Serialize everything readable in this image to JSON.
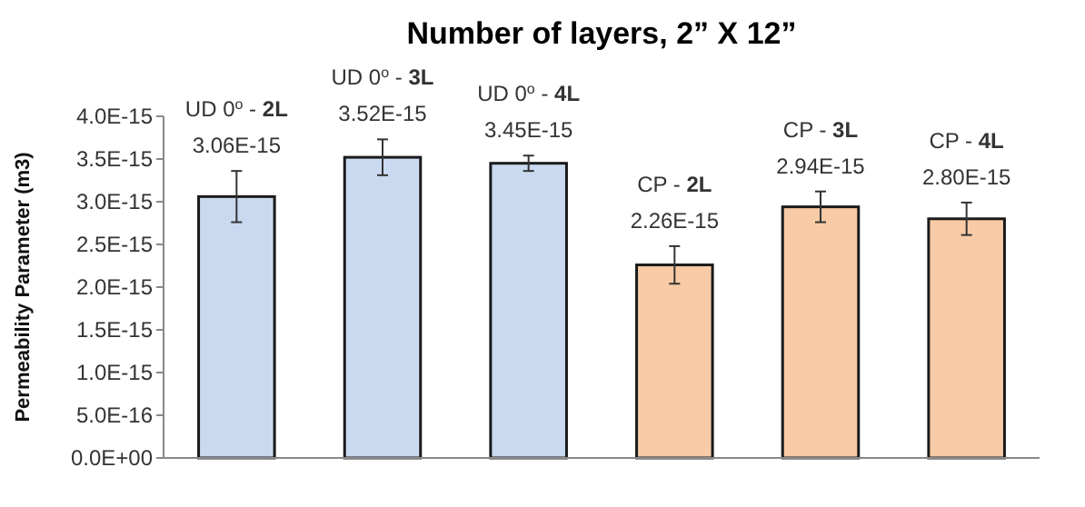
{
  "chart_data": {
    "type": "bar",
    "title": "Number of layers, 2” X 12”",
    "ylabel": "Permeability Parameter (m3)",
    "categories": [
      "UD 0$^{o}$ - 2L",
      "UD 0$^{o}$ - 3L",
      "UD 0$^{o}$ - 4L",
      "CP - 2L",
      "CP - 3L",
      "CP - 4L"
    ],
    "values": [
      3.06e-15,
      3.52e-15,
      3.45e-15,
      2.26e-15,
      2.94e-15,
      2.8e-15
    ],
    "value_labels": [
      "3.06E-15",
      "3.52E-15",
      "3.45E-15",
      "2.26E-15",
      "2.94E-15",
      "2.80E-15"
    ],
    "errors": [
      3e-16,
      2.1e-16,
      9e-17,
      2.2e-16,
      1.8e-16,
      1.9e-16
    ],
    "colors": [
      "#c9daf0",
      "#c9daf0",
      "#c9daf0",
      "#f8cba6",
      "#f8cba6",
      "#f8cba6"
    ],
    "ylim": [
      0,
      4e-15
    ],
    "yticks": [
      {
        "value": 0,
        "label": "0.0E+00"
      },
      {
        "value": 5e-16,
        "label": "5.0E-16"
      },
      {
        "value": 1e-15,
        "label": "1.0E-15"
      },
      {
        "value": 1.5e-15,
        "label": "1.5E-15"
      },
      {
        "value": 2e-15,
        "label": "2.0E-15"
      },
      {
        "value": 2.5e-15,
        "label": "2.5E-15"
      },
      {
        "value": 3e-15,
        "label": "3.0E-15"
      },
      {
        "value": 3.5e-15,
        "label": "3.5E-15"
      },
      {
        "value": 4e-15,
        "label": "4.0E-15"
      }
    ],
    "grid": false
  }
}
